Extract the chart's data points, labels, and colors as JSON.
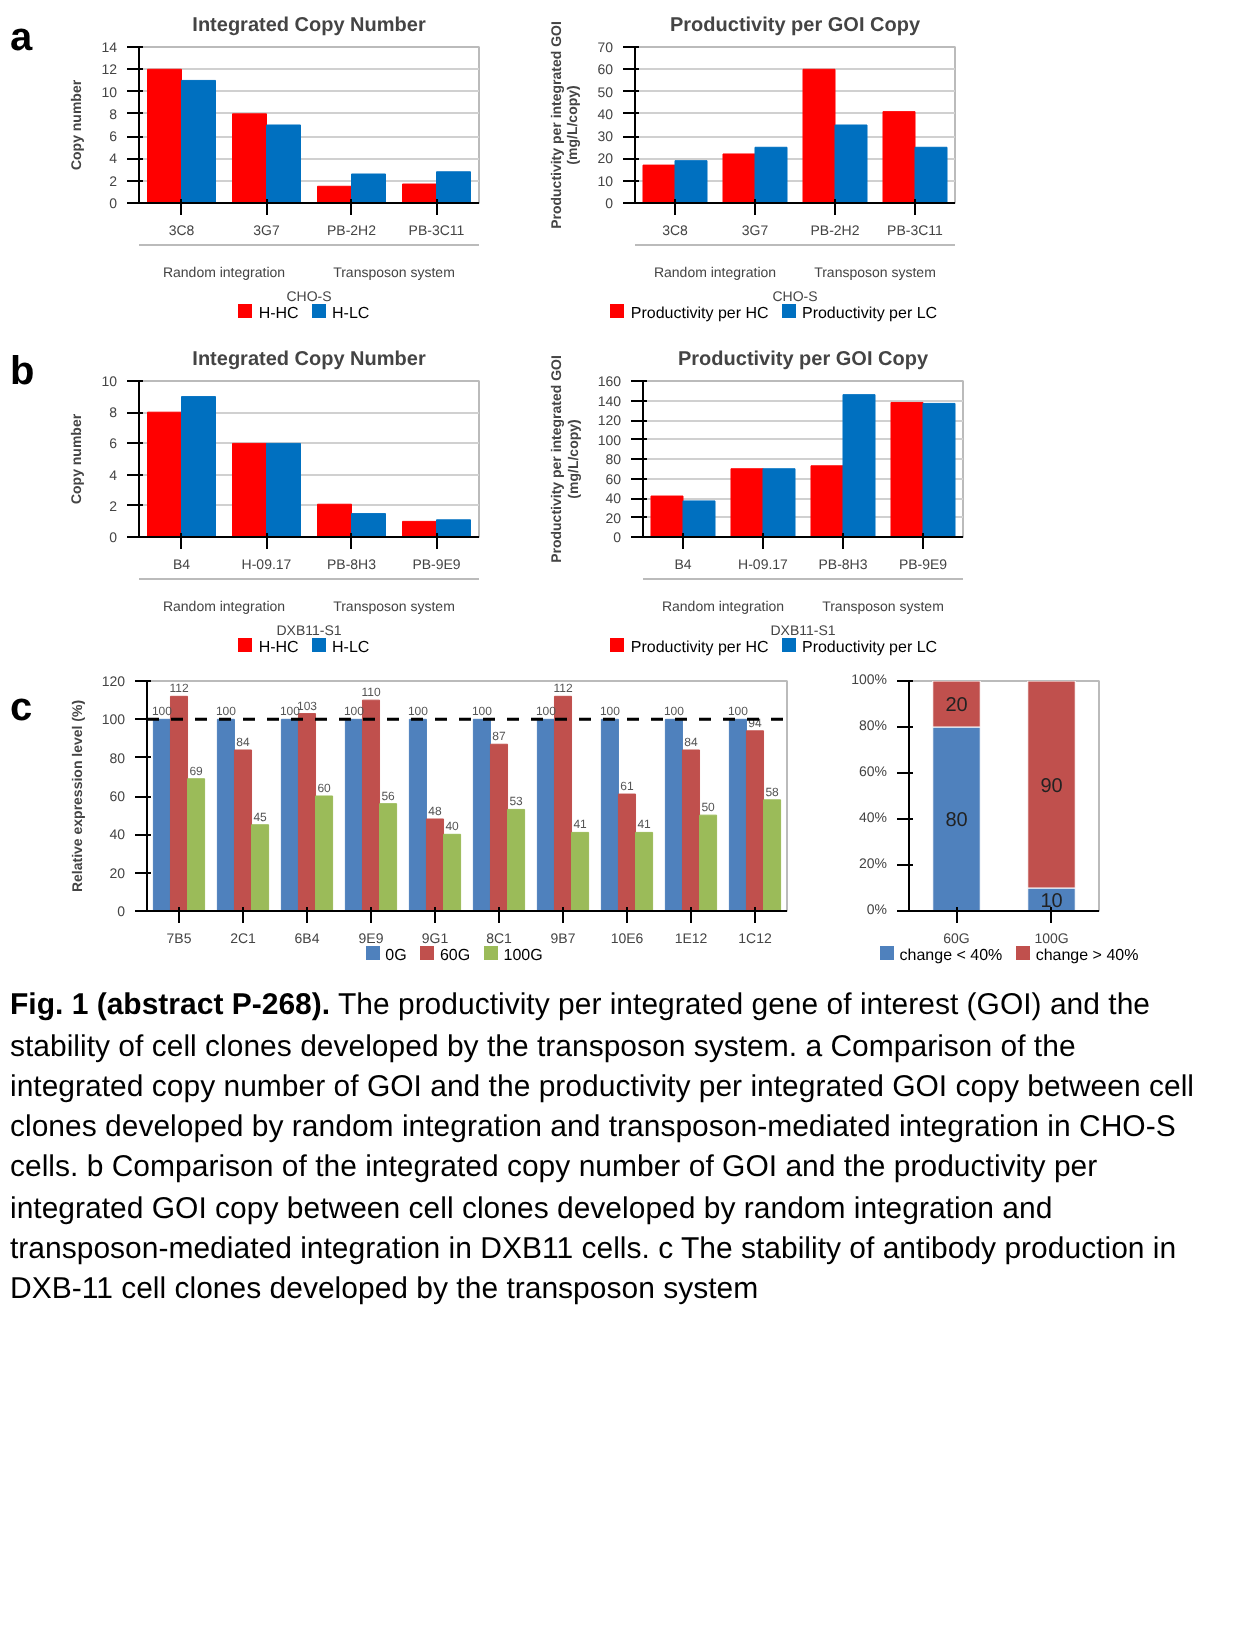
{
  "chart_data": [
    {
      "type": "bar",
      "title": "Integrated Copy Number",
      "ylabel": "Copy number",
      "categories": [
        "3C8",
        "3G7",
        "PB-2H2",
        "PB-3C11"
      ],
      "series": [
        {
          "name": "H-HC",
          "color": "#ff0000",
          "values": [
            12,
            8,
            1.5,
            1.7
          ]
        },
        {
          "name": "H-LC",
          "color": "#0070c0",
          "values": [
            11,
            7,
            2.6,
            2.8
          ]
        }
      ],
      "ylim": [
        0,
        14
      ],
      "yticks": [
        0,
        2,
        4,
        6,
        8,
        10,
        12,
        14
      ],
      "grid": "y",
      "legend": "bottom",
      "annotations": [
        "a",
        "Random integration",
        "Transposon system",
        "CHO-S"
      ]
    },
    {
      "type": "bar",
      "title": "Productivity per GOI Copy",
      "ylabel": "Productivity per integrated GOI\n(mg/L/copy)",
      "categories": [
        "3C8",
        "3G7",
        "PB-2H2",
        "PB-3C11"
      ],
      "series": [
        {
          "name": "Productivity per HC",
          "color": "#ff0000",
          "values": [
            17,
            22,
            60,
            41
          ]
        },
        {
          "name": "Productivity per LC",
          "color": "#0070c0",
          "values": [
            19,
            25,
            35,
            25
          ]
        }
      ],
      "ylim": [
        0,
        70
      ],
      "yticks": [
        0,
        10,
        20,
        30,
        40,
        50,
        60,
        70
      ],
      "grid": "y",
      "legend": "bottom",
      "annotations": [
        "Random integration",
        "Transposon system",
        "CHO-S"
      ]
    },
    {
      "type": "bar",
      "title": "Integrated Copy Number",
      "ylabel": "Copy number",
      "categories": [
        "B4",
        "H-09.17",
        "PB-8H3",
        "PB-9E9"
      ],
      "series": [
        {
          "name": "H-HC",
          "color": "#ff0000",
          "values": [
            8,
            6,
            2.1,
            1
          ]
        },
        {
          "name": "H-LC",
          "color": "#0070c0",
          "values": [
            9,
            6,
            1.5,
            1.1
          ]
        }
      ],
      "ylim": [
        0,
        10
      ],
      "yticks": [
        0,
        2,
        4,
        6,
        8,
        10
      ],
      "grid": "y",
      "legend": "bottom",
      "annotations": [
        "b",
        "Random integration",
        "Transposon system",
        "DXB11-S1"
      ]
    },
    {
      "type": "bar",
      "title": "Productivity per GOI Copy",
      "ylabel": "Productivity per integrated GOI\n(mg/L/copy)",
      "categories": [
        "B4",
        "H-09.17",
        "PB-8H3",
        "PB-9E9"
      ],
      "series": [
        {
          "name": "Productivity per HC",
          "color": "#ff0000",
          "values": [
            42,
            70,
            73,
            138
          ]
        },
        {
          "name": "Productivity per LC",
          "color": "#0070c0",
          "values": [
            37,
            70,
            146,
            137
          ]
        }
      ],
      "ylim": [
        0,
        160
      ],
      "yticks": [
        0,
        20,
        40,
        60,
        80,
        100,
        120,
        140,
        160
      ],
      "grid": "y",
      "legend": "bottom",
      "annotations": [
        "Random integration",
        "Transposon system",
        "DXB11-S1"
      ]
    },
    {
      "type": "bar",
      "ylabel": "Relative expression level (%)",
      "categories": [
        "7B5",
        "2C1",
        "6B4",
        "9E9",
        "9G1",
        "8C1",
        "9B7",
        "10E6",
        "1E12",
        "1C12"
      ],
      "series": [
        {
          "name": "0G",
          "color": "#4f81bd",
          "values": [
            100,
            100,
            100,
            100,
            100,
            100,
            100,
            100,
            100,
            100
          ]
        },
        {
          "name": "60G",
          "color": "#c0504d",
          "values": [
            112,
            84,
            103,
            110,
            48,
            87,
            112,
            61,
            84,
            94
          ]
        },
        {
          "name": "100G",
          "color": "#9bbb59",
          "values": [
            69,
            45,
            60,
            56,
            40,
            53,
            41,
            41,
            50,
            58
          ]
        }
      ],
      "ylim": [
        0,
        120
      ],
      "yticks": [
        0,
        20,
        40,
        60,
        80,
        100,
        120
      ],
      "data_labels": true,
      "legend": "bottom",
      "ref_lines": [
        {
          "axis": "y",
          "value": 100,
          "color": "#000000",
          "line_style": "dashed"
        }
      ],
      "annotations": [
        "c"
      ]
    },
    {
      "type": "bar",
      "stacked": true,
      "categories": [
        "60G",
        "100G"
      ],
      "series": [
        {
          "name": "change < 40%",
          "color": "#4f81bd",
          "values": [
            80,
            10
          ]
        },
        {
          "name": "change > 40%",
          "color": "#c0504d",
          "values": [
            20,
            90
          ]
        }
      ],
      "ylim": [
        0,
        100
      ],
      "yticks": [
        {
          "value": 0,
          "label": "0%"
        },
        {
          "value": 20,
          "label": "20%"
        },
        {
          "value": 40,
          "label": "40%"
        },
        {
          "value": 60,
          "label": "60%"
        },
        {
          "value": 80,
          "label": "80%"
        },
        {
          "value": 100,
          "label": "100%"
        }
      ],
      "data_labels": true,
      "legend": "bottom",
      "annotations": [
        "Fig. 1 (abstract P-268).",
        "The productivity per integrated gene of interest (GOI) and the stability of cell clones developed by the transposon system. a Comparison of the integrated copy number of GOI and the productivity per integrated GOI copy between cell clones developed by random integration and transposon-mediated integration in CHO-S cells. b Comparison of the integrated copy number of GOI and the productivity per integrated GOI copy between cell clones developed by random integration and transposon-mediated integration in DXB11 cells. c The stability of antibody production in DXB-11 cell clones developed by the transposon system"
      ]
    }
  ]
}
